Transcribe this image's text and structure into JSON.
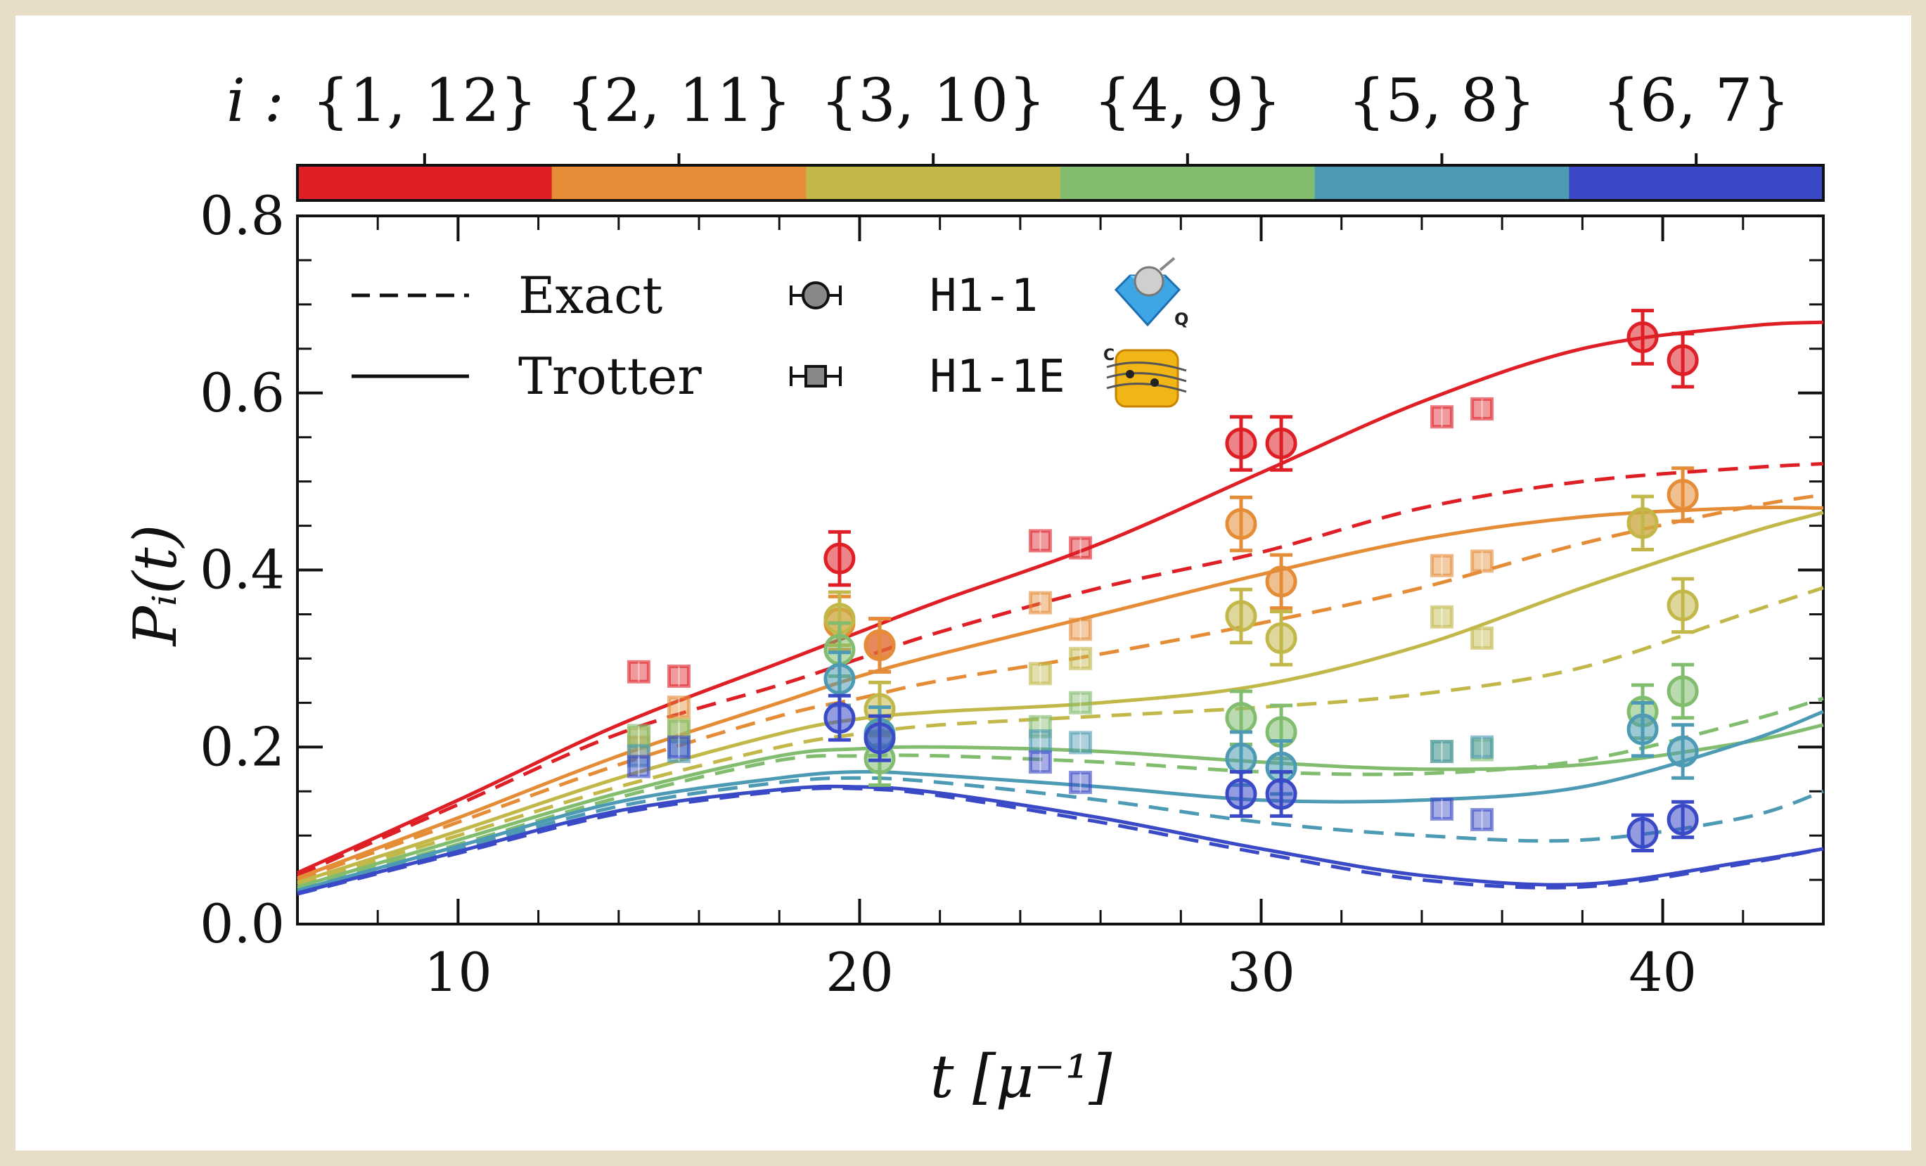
{
  "chart_data": {
    "type": "line",
    "title": "",
    "xlabel": "t [μ⁻¹]",
    "ylabel": "Pᵢ(t)",
    "xlim": [
      6,
      44
    ],
    "ylim": [
      0,
      0.8
    ],
    "x_ticks": [
      "10",
      "20",
      "30",
      "40"
    ],
    "y_ticks": [
      "0.0",
      "0.2",
      "0.4",
      "0.6",
      "0.8"
    ],
    "colorbar": {
      "prefix": "i :",
      "labels": [
        "{1, 12}",
        "{2, 11}",
        "{3, 10}",
        "{4, 9}",
        "{5, 8}",
        "{6, 7}"
      ],
      "colors": [
        "#de1f26",
        "#e58c37",
        "#c2b84a",
        "#82bd6f",
        "#4c9ab3",
        "#3a4ac6"
      ]
    },
    "legend": {
      "placement": "top-left",
      "line_entries": [
        {
          "label": "Exact",
          "style": "dashed"
        },
        {
          "label": "Trotter",
          "style": "solid"
        }
      ],
      "marker_entries": [
        {
          "label": "H1-1",
          "marker": "circle",
          "icon": "quantinuum-h1-1-device-icon"
        },
        {
          "label": "H1-1E",
          "marker": "square",
          "icon": "emulator-h1-1e-icon"
        }
      ]
    },
    "curve_x": [
      6,
      10,
      14,
      18,
      20,
      22,
      26,
      30,
      34,
      38,
      42,
      44
    ],
    "series": [
      {
        "name": "{1, 12}",
        "color": "#de1f26",
        "trotter": [
          0.058,
          0.14,
          0.225,
          0.295,
          0.33,
          0.365,
          0.43,
          0.51,
          0.59,
          0.65,
          0.675,
          0.68
        ],
        "exact": [
          0.055,
          0.135,
          0.215,
          0.27,
          0.3,
          0.33,
          0.38,
          0.42,
          0.47,
          0.5,
          0.515,
          0.52
        ],
        "h1_1": {
          "x": [
            19.5,
            20.5,
            29.5,
            30.5,
            39.5,
            40.5
          ],
          "y": [
            0.413,
            0.315,
            0.543,
            0.543,
            0.663,
            0.637
          ],
          "err": [
            0.03,
            0.03,
            0.03,
            0.03,
            0.03,
            0.03
          ]
        },
        "h1_1e": {
          "x": [
            14.5,
            15.5,
            24.5,
            25.5,
            34.5,
            35.5
          ],
          "y": [
            0.285,
            0.28,
            0.433,
            0.425,
            0.573,
            0.582
          ]
        }
      },
      {
        "name": "{2, 11}",
        "color": "#e58c37",
        "trotter": [
          0.052,
          0.12,
          0.19,
          0.25,
          0.28,
          0.305,
          0.35,
          0.395,
          0.435,
          0.46,
          0.47,
          0.47
        ],
        "exact": [
          0.05,
          0.115,
          0.18,
          0.235,
          0.255,
          0.275,
          0.305,
          0.34,
          0.38,
          0.43,
          0.47,
          0.485
        ],
        "h1_1": {
          "x": [
            19.5,
            20.5,
            29.5,
            30.5,
            39.5,
            40.5
          ],
          "y": [
            0.34,
            0.315,
            0.452,
            0.387,
            0.453,
            0.485
          ],
          "err": [
            0.03,
            0.03,
            0.03,
            0.03,
            0.03,
            0.03
          ]
        },
        "h1_1e": {
          "x": [
            14.5,
            15.5,
            24.5,
            25.5,
            34.5,
            35.5
          ],
          "y": [
            0.2,
            0.245,
            0.363,
            0.333,
            0.405,
            0.41
          ]
        }
      },
      {
        "name": "{3, 10}",
        "color": "#c2b84a",
        "trotter": [
          0.047,
          0.105,
          0.165,
          0.215,
          0.232,
          0.24,
          0.25,
          0.27,
          0.315,
          0.38,
          0.44,
          0.465
        ],
        "exact": [
          0.045,
          0.1,
          0.155,
          0.2,
          0.215,
          0.225,
          0.235,
          0.245,
          0.26,
          0.29,
          0.35,
          0.38
        ],
        "h1_1": {
          "x": [
            19.5,
            20.5,
            29.5,
            30.5,
            39.5,
            40.5
          ],
          "y": [
            0.345,
            0.243,
            0.348,
            0.323,
            0.453,
            0.36
          ],
          "err": [
            0.03,
            0.03,
            0.03,
            0.03,
            0.03,
            0.03
          ]
        },
        "h1_1e": {
          "x": [
            14.5,
            15.5,
            24.5,
            25.5,
            34.5,
            35.5
          ],
          "y": [
            0.21,
            0.22,
            0.283,
            0.3,
            0.347,
            0.323
          ]
        }
      },
      {
        "name": "{4, 9}",
        "color": "#82bd6f",
        "trotter": [
          0.042,
          0.095,
          0.148,
          0.19,
          0.198,
          0.2,
          0.195,
          0.183,
          0.175,
          0.18,
          0.205,
          0.225
        ],
        "exact": [
          0.04,
          0.09,
          0.143,
          0.185,
          0.19,
          0.19,
          0.183,
          0.172,
          0.17,
          0.185,
          0.228,
          0.255
        ],
        "h1_1": {
          "x": [
            19.5,
            20.5,
            29.5,
            30.5,
            39.5,
            40.5
          ],
          "y": [
            0.31,
            0.187,
            0.233,
            0.217,
            0.24,
            0.263
          ],
          "err": [
            0.03,
            0.03,
            0.03,
            0.03,
            0.03,
            0.03
          ]
        },
        "h1_1e": {
          "x": [
            14.5,
            15.5,
            24.5,
            25.5,
            34.5,
            35.5
          ],
          "y": [
            0.213,
            0.218,
            0.223,
            0.25,
            0.195,
            0.197
          ]
        }
      },
      {
        "name": "{5, 8}",
        "color": "#4c9ab3",
        "trotter": [
          0.038,
          0.088,
          0.138,
          0.165,
          0.172,
          0.168,
          0.155,
          0.14,
          0.14,
          0.155,
          0.205,
          0.24
        ],
        "exact": [
          0.036,
          0.085,
          0.133,
          0.16,
          0.165,
          0.16,
          0.14,
          0.115,
          0.1,
          0.095,
          0.12,
          0.15
        ],
        "h1_1": {
          "x": [
            19.5,
            20.5,
            29.5,
            30.5,
            39.5,
            40.5
          ],
          "y": [
            0.277,
            0.215,
            0.187,
            0.177,
            0.22,
            0.195
          ],
          "err": [
            0.03,
            0.03,
            0.03,
            0.03,
            0.03,
            0.03
          ]
        },
        "h1_1e": {
          "x": [
            14.5,
            15.5,
            24.5,
            25.5,
            34.5,
            35.5
          ],
          "y": [
            0.19,
            0.195,
            0.207,
            0.205,
            0.195,
            0.2
          ]
        }
      },
      {
        "name": "{6, 7}",
        "color": "#3a4ac6",
        "trotter": [
          0.035,
          0.082,
          0.128,
          0.152,
          0.155,
          0.148,
          0.12,
          0.085,
          0.055,
          0.045,
          0.07,
          0.085
        ],
        "exact": [
          0.034,
          0.08,
          0.125,
          0.15,
          0.153,
          0.145,
          0.115,
          0.08,
          0.05,
          0.042,
          0.068,
          0.085
        ],
        "h1_1": {
          "x": [
            19.5,
            20.5,
            29.5,
            30.5,
            39.5,
            40.5
          ],
          "y": [
            0.233,
            0.21,
            0.147,
            0.147,
            0.103,
            0.118
          ],
          "err": [
            0.025,
            0.025,
            0.025,
            0.025,
            0.02,
            0.02
          ]
        },
        "h1_1e": {
          "x": [
            14.5,
            15.5,
            24.5,
            25.5,
            34.5,
            35.5
          ],
          "y": [
            0.178,
            0.2,
            0.183,
            0.16,
            0.13,
            0.118
          ]
        }
      }
    ]
  }
}
